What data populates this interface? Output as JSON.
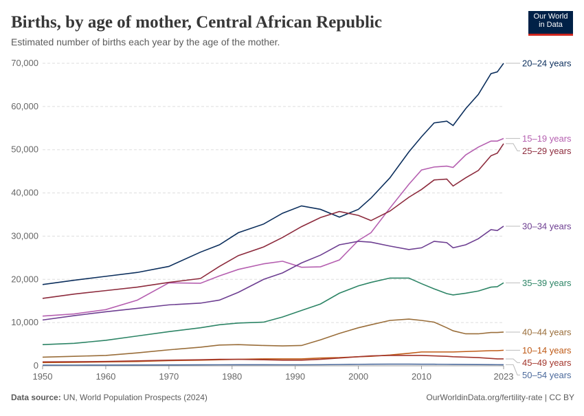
{
  "header": {
    "title": "Births, by age of mother, Central African Republic",
    "subtitle": "Estimated number of births each year by the age of the mother.",
    "logo": "Our World in Data"
  },
  "footer": {
    "source_label": "Data source:",
    "source": "UN, World Population Prospects (2024)",
    "link": "OurWorldinData.org/fertility-rate | CC BY"
  },
  "chart_data": {
    "type": "line",
    "grid": true,
    "x": [
      1950,
      1955,
      1960,
      1965,
      1970,
      1975,
      1978,
      1981,
      1985,
      1988,
      1991,
      1994,
      1997,
      2000,
      2002,
      2005,
      2008,
      2010,
      2012,
      2014,
      2015,
      2017,
      2019,
      2021,
      2022,
      2023
    ],
    "xlim": [
      1950,
      2023
    ],
    "xticks": [
      1950,
      1960,
      1970,
      1980,
      1990,
      2000,
      2010,
      2023
    ],
    "ylim": [
      0,
      70000
    ],
    "yticks": [
      0,
      {
        "value": 10000,
        "label": "10,000"
      },
      {
        "value": 20000,
        "label": "20,000"
      },
      {
        "value": 30000,
        "label": "30,000"
      },
      {
        "value": 40000,
        "label": "40,000"
      },
      {
        "value": 50000,
        "label": "50,000"
      },
      {
        "value": 60000,
        "label": "60,000"
      },
      {
        "value": 70000,
        "label": "70,000"
      }
    ],
    "series": [
      {
        "name": "20–24 years",
        "color": "#0b2e5c",
        "values": [
          18800,
          19800,
          20700,
          21600,
          23000,
          26300,
          28000,
          30800,
          32800,
          35300,
          37000,
          36200,
          34400,
          36200,
          38800,
          43500,
          49500,
          53000,
          56200,
          56600,
          55600,
          59500,
          62800,
          67600,
          68000,
          70000
        ]
      },
      {
        "name": "15–19 years",
        "color": "#b55fb0",
        "values": [
          11500,
          12000,
          13000,
          15200,
          19200,
          19100,
          20800,
          22300,
          23600,
          24200,
          22800,
          22900,
          24500,
          29000,
          30800,
          36500,
          42000,
          45300,
          46000,
          46200,
          45900,
          48800,
          50600,
          52000,
          52000,
          52600
        ]
      },
      {
        "name": "25–29 years",
        "color": "#8c2a3c",
        "values": [
          15600,
          16600,
          17400,
          18200,
          19300,
          20200,
          23000,
          25500,
          27500,
          29700,
          32200,
          34300,
          35700,
          34800,
          33600,
          35800,
          39000,
          40800,
          43000,
          43200,
          41600,
          43500,
          45200,
          48600,
          49200,
          51400
        ]
      },
      {
        "name": "30–34 years",
        "color": "#6d3e91",
        "values": [
          10600,
          11600,
          12500,
          13300,
          14100,
          14500,
          15200,
          17000,
          20000,
          21500,
          23800,
          25600,
          28000,
          28800,
          28600,
          27700,
          26900,
          27300,
          28800,
          28500,
          27300,
          28000,
          29400,
          31500,
          31300,
          32300
        ]
      },
      {
        "name": "35–39 years",
        "color": "#2c8465",
        "values": [
          4900,
          5200,
          5900,
          6900,
          7900,
          8800,
          9500,
          9900,
          10100,
          11300,
          12800,
          14300,
          16800,
          18500,
          19300,
          20300,
          20300,
          19000,
          17800,
          16700,
          16400,
          16800,
          17300,
          18200,
          18300,
          19200
        ]
      },
      {
        "name": "40–44 years",
        "color": "#996d39",
        "values": [
          2000,
          2200,
          2400,
          3000,
          3700,
          4300,
          4800,
          4900,
          4700,
          4600,
          4700,
          6000,
          7500,
          8800,
          9500,
          10500,
          10800,
          10500,
          10100,
          8800,
          8100,
          7400,
          7400,
          7700,
          7700,
          7800
        ]
      },
      {
        "name": "10–14 years",
        "color": "#be5915",
        "values": [
          750,
          800,
          900,
          1000,
          1200,
          1300,
          1400,
          1500,
          1600,
          1600,
          1600,
          1800,
          1900,
          2100,
          2200,
          2500,
          2900,
          3200,
          3200,
          3200,
          3200,
          3300,
          3400,
          3500,
          3500,
          3600
        ]
      },
      {
        "name": "45–49 years",
        "color": "#a2352b",
        "values": [
          900,
          950,
          1000,
          1150,
          1300,
          1400,
          1500,
          1500,
          1400,
          1300,
          1300,
          1500,
          1800,
          2100,
          2300,
          2400,
          2400,
          2400,
          2300,
          2200,
          2100,
          2000,
          1900,
          1700,
          1600,
          1600
        ]
      },
      {
        "name": "50–54 years",
        "color": "#4c6a9c",
        "values": [
          150,
          160,
          170,
          190,
          210,
          230,
          240,
          250,
          250,
          240,
          240,
          260,
          300,
          340,
          360,
          380,
          380,
          370,
          360,
          340,
          330,
          310,
          290,
          270,
          260,
          250
        ]
      }
    ]
  }
}
